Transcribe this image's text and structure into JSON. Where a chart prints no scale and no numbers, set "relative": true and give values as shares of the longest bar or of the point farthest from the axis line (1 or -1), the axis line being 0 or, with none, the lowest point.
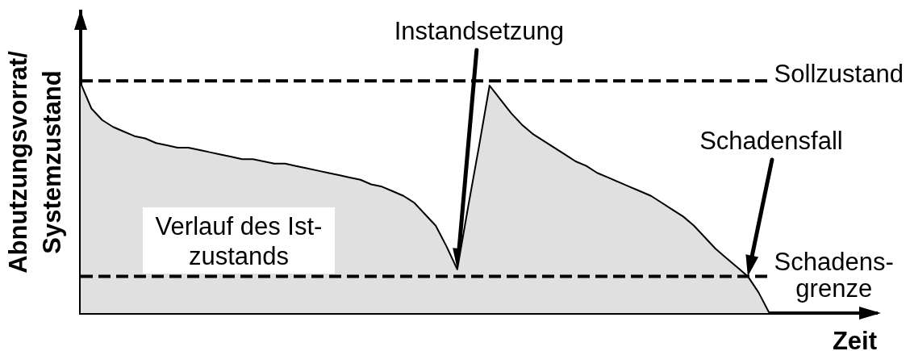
{
  "chart_data": {
    "type": "area",
    "relative": true,
    "xlabel": "Zeit",
    "ylabel": "Abnutzungsvorrat/\nSystemzustand",
    "categories": [
      null,
      null,
      null,
      null,
      null,
      null,
      null,
      null,
      null,
      null,
      null,
      null,
      null,
      null,
      null,
      null,
      null,
      null,
      null,
      null,
      null,
      null,
      null,
      null,
      null,
      null,
      null,
      null,
      null,
      null,
      null,
      null,
      null,
      null,
      null,
      null,
      null,
      null,
      null,
      null,
      null,
      null,
      null,
      null,
      null,
      null,
      null,
      null,
      null,
      null,
      null,
      null,
      null,
      null,
      null,
      null,
      null,
      null,
      null,
      null,
      null,
      null,
      null,
      null,
      null,
      null,
      null,
      null,
      null,
      null,
      null,
      null,
      null,
      null,
      null
    ],
    "series": [
      {
        "name": "Verlauf des Ist-\nzustands",
        "color": "#000000",
        "values": [
          1,
          0.89,
          0.84,
          0.81,
          0.79,
          0.77,
          0.76,
          0.74,
          0.73,
          0.72,
          0.72,
          0.71,
          0.7,
          0.69,
          0.68,
          0.67,
          0.67,
          0.66,
          0.65,
          0.65,
          0.64,
          0.63,
          0.62,
          0.61,
          0.6,
          0.59,
          0.58,
          0.56,
          0.55,
          0.53,
          0.51,
          0.48,
          0.43,
          0.38,
          0.29,
          0.19,
          0.46,
          0.72,
          0.99,
          0.93,
          0.87,
          0.82,
          0.78,
          0.75,
          0.72,
          0.69,
          0.66,
          0.64,
          0.61,
          0.59,
          0.57,
          0.55,
          0.53,
          0.51,
          0.48,
          0.45,
          0.42,
          0.38,
          0.33,
          0.28,
          0.24,
          0.2,
          0.16,
          0.09,
          0,
          null,
          null,
          null,
          null,
          null,
          null,
          null,
          null,
          null,
          null
        ]
      }
    ],
    "ref_lines": [
      {
        "axis": "y",
        "value": 1.01,
        "label": "Sollzustand",
        "color": "#000000",
        "line_style": "dashed"
      },
      {
        "axis": "y",
        "value": 0.16,
        "label": "Schadens-\ngrenze",
        "color": "#000000",
        "line_style": "dashed"
      }
    ],
    "annotations": [
      "Instandsetzung",
      "Schadensfall"
    ]
  }
}
